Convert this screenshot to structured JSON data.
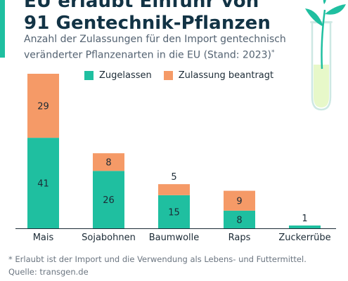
{
  "header": {
    "title_line1": "EU erlaubt Einfuhr von",
    "title_line2": "91 Gentechnik-Pflanzen",
    "subtitle_line1": "Anzahl der Zulassungen für den Import gentechnisch",
    "subtitle_line2": "veränderter Pflanzenarten in die EU (Stand: 2023)",
    "subtitle_marker": "*"
  },
  "chart_data": {
    "type": "bar",
    "stacked": true,
    "title": "",
    "xlabel": "",
    "ylabel": "",
    "categories": [
      "Mais",
      "Sojabohnen",
      "Baumwolle",
      "Raps",
      "Zuckerrübe"
    ],
    "series": [
      {
        "name": "Zugelassen",
        "values": [
          41,
          26,
          15,
          8,
          1
        ],
        "color": "#1fbfa0"
      },
      {
        "name": "Zulassung beantragt",
        "values": [
          29,
          8,
          5,
          9,
          0
        ],
        "color": "#f59a67"
      }
    ],
    "legend_position": "top",
    "grid": false,
    "baseline": true
  },
  "footer": {
    "note": "* Erlaubt ist der Import und die Verwendung als Lebens- und Futtermittel.",
    "source": "Quelle: transgen.de"
  },
  "colors": {
    "accent": "#1fbfa0",
    "approved": "#1fbfa0",
    "pending": "#f59a67",
    "title": "#123345",
    "text": "#536271"
  },
  "icons": {
    "illustration": "test-tube-seedling-icon"
  }
}
